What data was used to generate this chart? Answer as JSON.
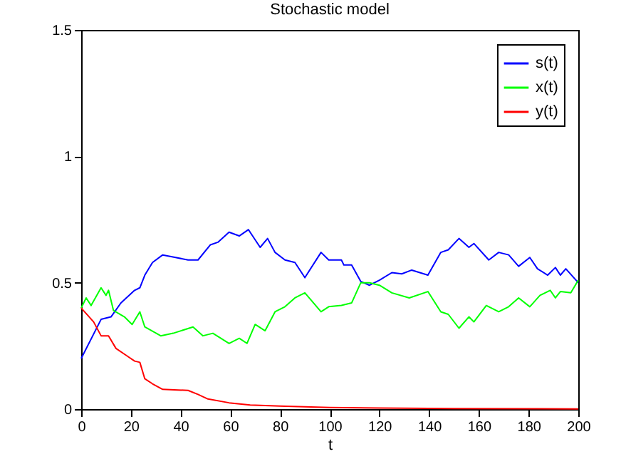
{
  "chart_data": {
    "type": "line",
    "title": "Stochastic model",
    "xlabel": "t",
    "xlim": [
      0,
      200
    ],
    "xticks": [
      0,
      20,
      40,
      60,
      80,
      100,
      120,
      140,
      160,
      180,
      200
    ],
    "ylim": [
      0,
      1.5
    ],
    "yticks": [
      0,
      0.5,
      1,
      1.5
    ],
    "grid": false,
    "legend": "top right",
    "marker": "none",
    "line_style": "solid",
    "series": [
      {
        "name": "s(t)",
        "color": "#0000ff",
        "x": [
          0,
          8,
          12,
          16,
          21.5,
          23.6,
          25.6,
          28.7,
          32.8,
          38,
          43,
          47,
          52,
          55,
          59.5,
          63.6,
          67.3,
          72,
          75,
          78,
          82,
          86,
          90,
          96.5,
          99.6,
          104.7,
          105.7,
          108.8,
          112.5,
          116,
          120,
          125,
          129,
          133,
          139.5,
          144.7,
          147.7,
          152,
          156,
          158,
          164,
          168,
          172,
          176,
          180.5,
          183.6,
          187.7,
          190.8,
          192.8,
          195,
          200
        ],
        "values": [
          0.2,
          0.355,
          0.365,
          0.42,
          0.47,
          0.48,
          0.53,
          0.58,
          0.61,
          0.6,
          0.59,
          0.59,
          0.65,
          0.66,
          0.7,
          0.685,
          0.71,
          0.64,
          0.675,
          0.62,
          0.59,
          0.58,
          0.52,
          0.62,
          0.59,
          0.59,
          0.57,
          0.57,
          0.505,
          0.49,
          0.51,
          0.54,
          0.535,
          0.55,
          0.53,
          0.62,
          0.63,
          0.675,
          0.64,
          0.655,
          0.59,
          0.62,
          0.61,
          0.565,
          0.6,
          0.555,
          0.53,
          0.56,
          0.53,
          0.555,
          0.5
        ]
      },
      {
        "name": "x(t)",
        "color": "#00ff00",
        "x": [
          0,
          2,
          4,
          8,
          10,
          11,
          13,
          17.4,
          20.5,
          23.6,
          25.6,
          32,
          37,
          45,
          49,
          53,
          59.5,
          63.6,
          66.7,
          70,
          74,
          78,
          82,
          86,
          90,
          96.5,
          99.6,
          104.7,
          108.8,
          112.5,
          116,
          120,
          125,
          132,
          139.5,
          144.7,
          147.7,
          152,
          156,
          158,
          163,
          168,
          172,
          176,
          180.5,
          184.6,
          188.7,
          190.8,
          192.8,
          197,
          200
        ],
        "values": [
          0.4,
          0.44,
          0.41,
          0.48,
          0.45,
          0.47,
          0.39,
          0.365,
          0.335,
          0.385,
          0.325,
          0.29,
          0.3,
          0.325,
          0.29,
          0.3,
          0.26,
          0.28,
          0.26,
          0.335,
          0.31,
          0.385,
          0.405,
          0.44,
          0.46,
          0.385,
          0.405,
          0.41,
          0.42,
          0.5,
          0.5,
          0.49,
          0.46,
          0.44,
          0.465,
          0.385,
          0.375,
          0.32,
          0.365,
          0.345,
          0.41,
          0.385,
          0.405,
          0.44,
          0.405,
          0.45,
          0.47,
          0.44,
          0.465,
          0.46,
          0.51
        ]
      },
      {
        "name": "y(t)",
        "color": "#ff0000",
        "x": [
          0,
          5,
          8,
          11,
          14,
          18.5,
          21.5,
          23.6,
          25.6,
          28.7,
          32.8,
          43,
          47,
          51,
          59.5,
          68,
          80,
          100,
          120,
          150,
          200
        ],
        "values": [
          0.4,
          0.345,
          0.29,
          0.29,
          0.24,
          0.21,
          0.19,
          0.185,
          0.12,
          0.1,
          0.078,
          0.074,
          0.058,
          0.04,
          0.025,
          0.016,
          0.012,
          0.006,
          0.004,
          0.002,
          0.001
        ]
      }
    ]
  }
}
